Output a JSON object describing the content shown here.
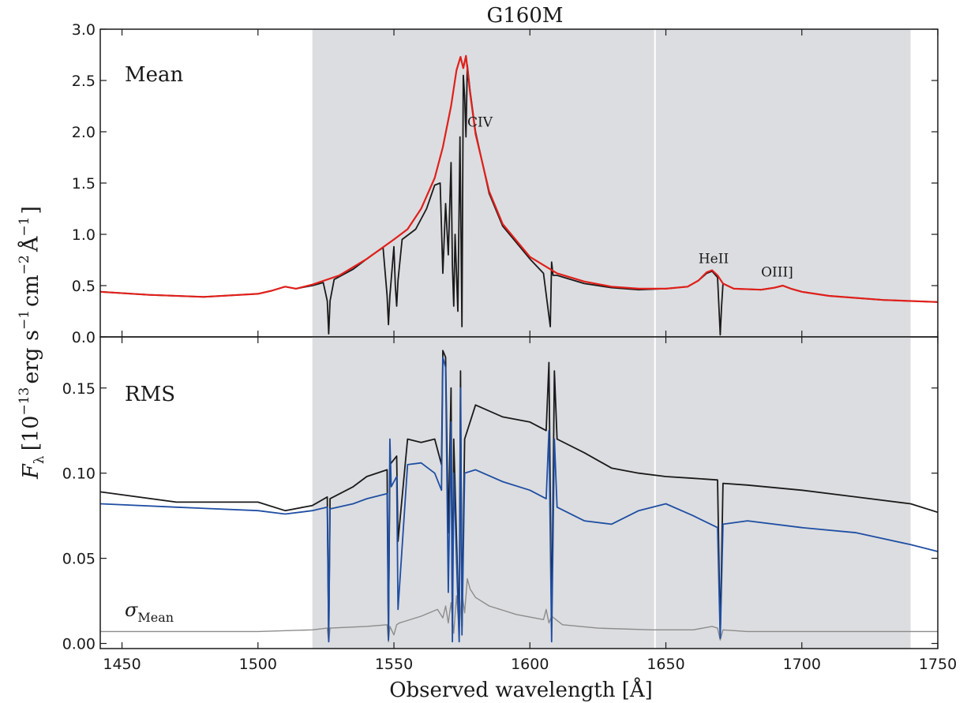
{
  "chart_data": {
    "type": "line",
    "title": "G160M",
    "xlabel": "Observed wavelength [Å]",
    "ylabel_parts": {
      "f": "F",
      "f_sub": "λ",
      "open": "[10",
      "exp_13": "−13",
      "erg": "erg s",
      "exp_1a": "−1",
      "cm": "cm",
      "exp_2": "−2",
      "ang": "Å",
      "exp_1b": "−1",
      "close": "]"
    },
    "xlim": [
      1442,
      1750
    ],
    "xticks": [
      1450,
      1500,
      1550,
      1600,
      1650,
      1700,
      1750
    ],
    "shaded_region": [
      1520,
      1740
    ],
    "gap_line_x": 1646,
    "colors": {
      "observed": "#1a1a1a",
      "model": "#e0201b",
      "rms_total": "#1a1a1a",
      "rms_blue": "#1f4ea3",
      "sigma_mean": "#8c8c8c",
      "shade": "#dcdde0"
    },
    "panels": [
      {
        "label": "Mean",
        "ylim": [
          0.0,
          3.0
        ],
        "yticks": [
          "0.0",
          "0.5",
          "1.0",
          "1.5",
          "2.0",
          "2.5",
          "3.0"
        ],
        "line_labels": [
          {
            "text": "CIV",
            "x": 1577,
            "y": 2.05
          },
          {
            "text": "HeII",
            "x": 1662,
            "y": 0.72
          },
          {
            "text": "OIII]",
            "x": 1685,
            "y": 0.59
          }
        ],
        "series": [
          {
            "role": "model",
            "x": [
              1442,
              1460,
              1480,
              1500,
              1505,
              1510,
              1514,
              1520,
              1530,
              1540,
              1550,
              1555,
              1560,
              1565,
              1568,
              1571,
              1573,
              1574.5,
              1575.5,
              1576.5,
              1578,
              1580,
              1585,
              1590,
              1600,
              1610,
              1620,
              1630,
              1640,
              1650,
              1658,
              1662,
              1665,
              1667,
              1669,
              1671,
              1675,
              1685,
              1690,
              1693,
              1696,
              1700,
              1710,
              1720,
              1730,
              1740,
              1750
            ],
            "y": [
              0.44,
              0.41,
              0.39,
              0.42,
              0.45,
              0.49,
              0.47,
              0.51,
              0.6,
              0.76,
              0.95,
              1.05,
              1.25,
              1.55,
              1.85,
              2.25,
              2.6,
              2.73,
              2.62,
              2.74,
              2.38,
              1.98,
              1.42,
              1.1,
              0.78,
              0.62,
              0.54,
              0.49,
              0.47,
              0.47,
              0.49,
              0.55,
              0.63,
              0.65,
              0.6,
              0.52,
              0.47,
              0.46,
              0.48,
              0.5,
              0.47,
              0.44,
              0.4,
              0.38,
              0.36,
              0.35,
              0.34
            ]
          },
          {
            "role": "observed",
            "x": [
              1442,
              1460,
              1480,
              1500,
              1505,
              1510,
              1514,
              1520,
              1524,
              1525.5,
              1526,
              1526.5,
              1528,
              1535,
              1542,
              1546,
              1547.5,
              1548,
              1548.5,
              1550,
              1550.5,
              1551,
              1551.5,
              1553,
              1558,
              1562,
              1565,
              1567,
              1568,
              1569,
              1570,
              1571,
              1571.5,
              1572,
              1572.5,
              1573.5,
              1574.3,
              1575,
              1575.5,
              1576,
              1576.5,
              1577,
              1578,
              1580,
              1585,
              1590,
              1600,
              1605,
              1607.5,
              1608,
              1608.5,
              1610,
              1620,
              1630,
              1640,
              1650,
              1658,
              1662,
              1665,
              1667,
              1669,
              1669.5,
              1670,
              1670.5,
              1671,
              1675,
              1685,
              1690,
              1693,
              1696,
              1700,
              1710,
              1720,
              1730,
              1740,
              1750
            ],
            "y": [
              0.44,
              0.41,
              0.39,
              0.42,
              0.45,
              0.49,
              0.47,
              0.5,
              0.53,
              0.35,
              0.03,
              0.35,
              0.56,
              0.66,
              0.8,
              0.87,
              0.4,
              0.12,
              0.4,
              0.88,
              0.5,
              0.3,
              0.55,
              0.95,
              1.05,
              1.25,
              1.48,
              1.5,
              0.62,
              1.3,
              0.8,
              1.7,
              0.7,
              0.3,
              1.0,
              0.25,
              1.95,
              0.1,
              2.55,
              2.35,
              1.95,
              2.65,
              2.4,
              2.0,
              1.4,
              1.08,
              0.76,
              0.62,
              0.1,
              0.73,
              0.6,
              0.6,
              0.52,
              0.48,
              0.46,
              0.47,
              0.49,
              0.55,
              0.62,
              0.64,
              0.58,
              0.3,
              0.02,
              0.3,
              0.52,
              0.47,
              0.46,
              0.48,
              0.5,
              0.47,
              0.44,
              0.4,
              0.38,
              0.36,
              0.35,
              0.34
            ]
          }
        ]
      },
      {
        "label": "RMS",
        "sigma_label": "σ",
        "sigma_sub": "Mean",
        "ylim": [
          -0.003,
          0.18
        ],
        "yticks": [
          "0.00",
          "0.05",
          "0.10",
          "0.15"
        ],
        "series": [
          {
            "role": "rms_total",
            "x": [
              1442,
              1470,
              1500,
              1510,
              1520,
              1525.5,
              1526,
              1526.5,
              1535,
              1540,
              1547.5,
              1548,
              1548.5,
              1551,
              1551.5,
              1555,
              1560,
              1565,
              1567.5,
              1568,
              1569,
              1570,
              1571,
              1571.5,
              1572,
              1574,
              1574.5,
              1575,
              1576,
              1580,
              1590,
              1600,
              1606,
              1607,
              1608,
              1609,
              1610,
              1620,
              1630,
              1640,
              1650,
              1660,
              1669,
              1670,
              1671,
              1680,
              1700,
              1720,
              1740,
              1750
            ],
            "y": [
              0.089,
              0.083,
              0.083,
              0.078,
              0.081,
              0.086,
              0.002,
              0.085,
              0.092,
              0.098,
              0.102,
              0.004,
              0.105,
              0.11,
              0.06,
              0.12,
              0.118,
              0.12,
              0.105,
              0.172,
              0.168,
              0.065,
              0.15,
              0.01,
              0.12,
              0.005,
              0.16,
              0.01,
              0.12,
              0.14,
              0.133,
              0.13,
              0.125,
              0.165,
              0.01,
              0.16,
              0.12,
              0.112,
              0.103,
              0.1,
              0.098,
              0.097,
              0.096,
              0.005,
              0.094,
              0.093,
              0.09,
              0.086,
              0.082,
              0.077
            ]
          },
          {
            "role": "rms_blue",
            "x": [
              1442,
              1470,
              1500,
              1510,
              1520,
              1525.5,
              1526,
              1526.5,
              1535,
              1540,
              1547.5,
              1548,
              1548.5,
              1549,
              1551,
              1551.5,
              1555,
              1560,
              1565,
              1567.5,
              1568,
              1569,
              1570,
              1571,
              1571.5,
              1572,
              1574,
              1574.5,
              1575,
              1576,
              1580,
              1590,
              1600,
              1606,
              1607,
              1608,
              1609,
              1610,
              1620,
              1630,
              1640,
              1650,
              1660,
              1669,
              1670,
              1671,
              1680,
              1700,
              1720,
              1740,
              1750
            ],
            "y": [
              0.082,
              0.08,
              0.078,
              0.076,
              0.078,
              0.08,
              0.001,
              0.079,
              0.082,
              0.085,
              0.088,
              0.002,
              0.12,
              0.092,
              0.098,
              0.02,
              0.105,
              0.106,
              0.1,
              0.09,
              0.168,
              0.162,
              0.03,
              0.13,
              0.001,
              0.1,
              0.001,
              0.15,
              0.005,
              0.1,
              0.102,
              0.095,
              0.09,
              0.085,
              0.125,
              0.001,
              0.12,
              0.08,
              0.072,
              0.07,
              0.078,
              0.082,
              0.075,
              0.068,
              0.003,
              0.07,
              0.072,
              0.068,
              0.065,
              0.058,
              0.054
            ]
          },
          {
            "role": "sigma_mean",
            "x": [
              1442,
              1500,
              1520,
              1525.5,
              1526,
              1526.5,
              1540,
              1547.5,
              1548,
              1548.5,
              1550,
              1551,
              1552,
              1560,
              1566,
              1568,
              1569,
              1570,
              1571,
              1572,
              1573,
              1574,
              1575,
              1576,
              1577,
              1578,
              1580,
              1585,
              1595,
              1605,
              1606,
              1607,
              1608,
              1612,
              1625,
              1645,
              1660,
              1667,
              1669,
              1670,
              1671,
              1680,
              1700,
              1720,
              1750
            ],
            "y": [
              0.007,
              0.007,
              0.008,
              0.009,
              0.001,
              0.009,
              0.01,
              0.011,
              0.001,
              0.01,
              0.005,
              0.011,
              0.012,
              0.016,
              0.02,
              0.015,
              0.022,
              0.012,
              0.024,
              0.006,
              0.028,
              0.008,
              0.03,
              0.018,
              0.038,
              0.032,
              0.027,
              0.022,
              0.017,
              0.014,
              0.02,
              0.012,
              0.016,
              0.011,
              0.009,
              0.008,
              0.008,
              0.01,
              0.009,
              0.002,
              0.008,
              0.007,
              0.007,
              0.007,
              0.007
            ]
          }
        ]
      }
    ]
  }
}
